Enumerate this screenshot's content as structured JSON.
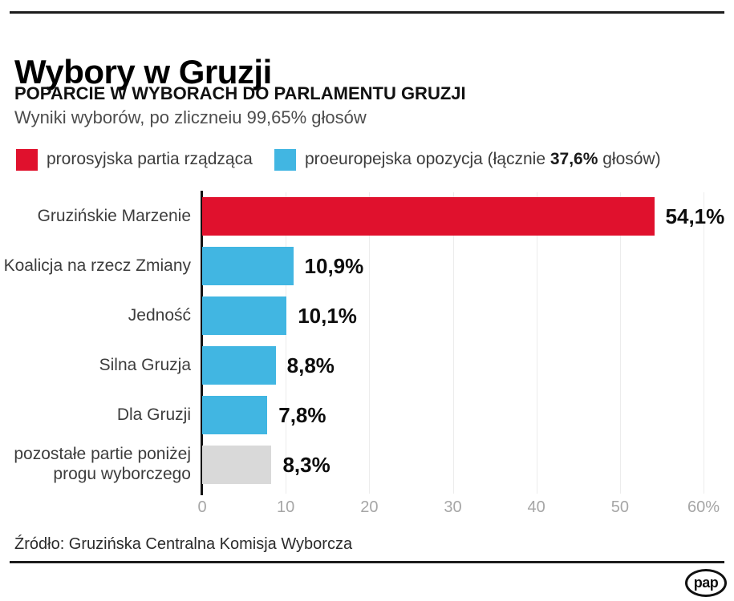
{
  "header": {
    "title": "Wybory w Gruzji",
    "subtitle": "POPARCIE W WYBORACH DO PARLAMENTU GRUZJI",
    "note": "Wyniki wyborów, po zliczneiu 99,65% głosów"
  },
  "legend": {
    "ruling": {
      "label": "prorosyjska partia rządząca",
      "color": "#e0112d"
    },
    "opposition": {
      "label_prefix": "proeuropejska opozycja (łącznie ",
      "label_bold": "37,6%",
      "label_suffix": " głosów)",
      "color": "#41b6e2"
    }
  },
  "chart_data": {
    "type": "bar",
    "orientation": "horizontal",
    "title": "POPARCIE W WYBORACH DO PARLAMENTU GRUZJI",
    "categories": [
      "Gruzińskie Marzenie",
      "Koalicja na rzecz Zmiany",
      "Jedność",
      "Silna Gruzja",
      "Dla Gruzji",
      "pozostałe partie poniżej\nprogu wyborczego"
    ],
    "values": [
      54.1,
      10.9,
      10.1,
      8.8,
      7.8,
      8.3
    ],
    "value_labels": [
      "54,1%",
      "10,9%",
      "10,1%",
      "8,8%",
      "7,8%",
      "8,3%"
    ],
    "bar_colors": [
      "#e0112d",
      "#41b6e2",
      "#41b6e2",
      "#41b6e2",
      "#41b6e2",
      "#d9d9d9"
    ],
    "xlim": [
      0,
      60
    ],
    "x_tick_values": [
      0,
      10,
      20,
      30,
      40,
      50,
      60
    ],
    "x_tick_labels": [
      "0",
      "10",
      "20",
      "30",
      "40",
      "50",
      "60%"
    ],
    "grid": true,
    "legend_position": "top"
  },
  "footer": {
    "source": "Źródło: Gruzińska Centralna Komisja Wyborcza",
    "logo_text": "pap"
  }
}
